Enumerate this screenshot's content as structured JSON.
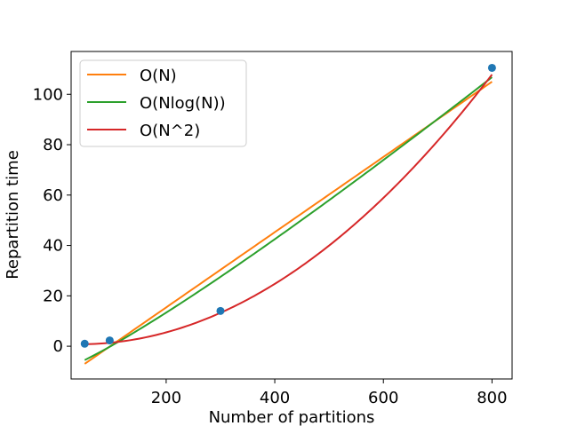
{
  "chart_data": {
    "type": "scatter",
    "xlabel": "Number of partitions",
    "ylabel": "Repartition time",
    "xlim": [
      25,
      837
    ],
    "ylim": [
      -13,
      117
    ],
    "xticks": [
      200,
      400,
      600,
      800
    ],
    "yticks": [
      0,
      20,
      40,
      60,
      80,
      100
    ],
    "legend_position": "top-left",
    "points": {
      "color": "#1f77b4",
      "x": [
        50,
        96,
        300,
        800
      ],
      "y": [
        1.0,
        2.3,
        14.0,
        110.5
      ]
    },
    "series": [
      {
        "name": "O(N)",
        "color": "#ff7f0e",
        "model": "linear",
        "x_range": [
          50,
          800
        ],
        "endpoints": [
          -7.0,
          105.0
        ]
      },
      {
        "name": "O(Nlog(N))",
        "color": "#2ca02c",
        "model": "nlogn",
        "x_range": [
          50,
          800
        ],
        "endpoints": [
          -5.5,
          106.8
        ]
      },
      {
        "name": "O(N^2)",
        "color": "#d62728",
        "model": "quadratic",
        "x_range": [
          50,
          800
        ],
        "coefficients": [
          0.0001858,
          -0.0152,
          1.1
        ]
      }
    ]
  }
}
